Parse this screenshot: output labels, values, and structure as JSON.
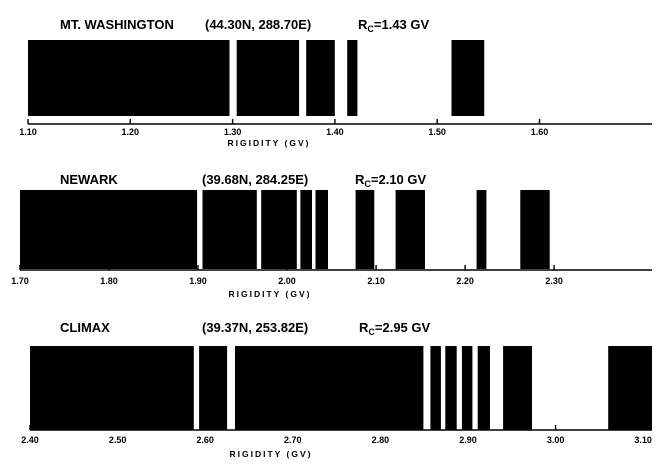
{
  "chart_data": [
    {
      "type": "bar",
      "title": "MT. WASHINGTON",
      "coordinates": "(44.30N, 288.70E)",
      "cutoff_prefix": "R",
      "cutoff_sub": "C",
      "cutoff_value": "=1.43 GV",
      "xlabel": "RIGIDITY (GV)",
      "xlim": [
        1.1,
        1.71
      ],
      "ticks": [
        1.1,
        1.2,
        1.3,
        1.4,
        1.5,
        1.6
      ],
      "tick_labels": [
        "1.10",
        "1.20",
        "1.30",
        "1.40",
        "1.50",
        "1.60"
      ],
      "bands": [
        [
          1.1,
          1.297
        ],
        [
          1.304,
          1.365
        ],
        [
          1.372,
          1.4
        ],
        [
          1.412,
          1.422
        ],
        [
          1.514,
          1.546
        ]
      ]
    },
    {
      "type": "bar",
      "title": "NEWARK",
      "coordinates": "(39.68N, 284.25E)",
      "cutoff_prefix": "R",
      "cutoff_sub": "C",
      "cutoff_value": "=2.10 GV",
      "xlabel": "RIGIDITY (GV)",
      "xlim": [
        1.7,
        2.41
      ],
      "ticks": [
        1.7,
        1.8,
        1.9,
        2.0,
        2.1,
        2.2,
        2.3
      ],
      "tick_labels": [
        "1.70",
        "1.80",
        "1.90",
        "2.00",
        "2.10",
        "2.20",
        "2.30"
      ],
      "bands": [
        [
          1.7,
          1.899
        ],
        [
          1.905,
          1.966
        ],
        [
          1.971,
          2.011
        ],
        [
          2.015,
          2.028
        ],
        [
          2.032,
          2.046
        ],
        [
          2.077,
          2.098
        ],
        [
          2.122,
          2.155
        ],
        [
          2.213,
          2.224
        ],
        [
          2.262,
          2.295
        ]
      ]
    },
    {
      "type": "bar",
      "title": "CLIMAX",
      "coordinates": "(39.37N, 253.82E)",
      "cutoff_prefix": "R",
      "cutoff_sub": "C",
      "cutoff_value": "=2.95 GV",
      "xlabel": "RIGIDITY (GV)",
      "xlim": [
        2.4,
        3.11
      ],
      "ticks": [
        2.4,
        2.5,
        2.6,
        2.7,
        2.8,
        2.9,
        3.0,
        3.1
      ],
      "tick_labels": [
        "2.40",
        "2.50",
        "2.60",
        "2.70",
        "2.80",
        "2.90",
        "3.00",
        "3.10"
      ],
      "bands": [
        [
          2.4,
          2.587
        ],
        [
          2.593,
          2.625
        ],
        [
          2.634,
          2.849
        ],
        [
          2.857,
          2.869
        ],
        [
          2.874,
          2.887
        ],
        [
          2.893,
          2.905
        ],
        [
          2.911,
          2.925
        ],
        [
          2.94,
          2.973
        ],
        [
          3.06,
          3.11
        ]
      ]
    }
  ]
}
